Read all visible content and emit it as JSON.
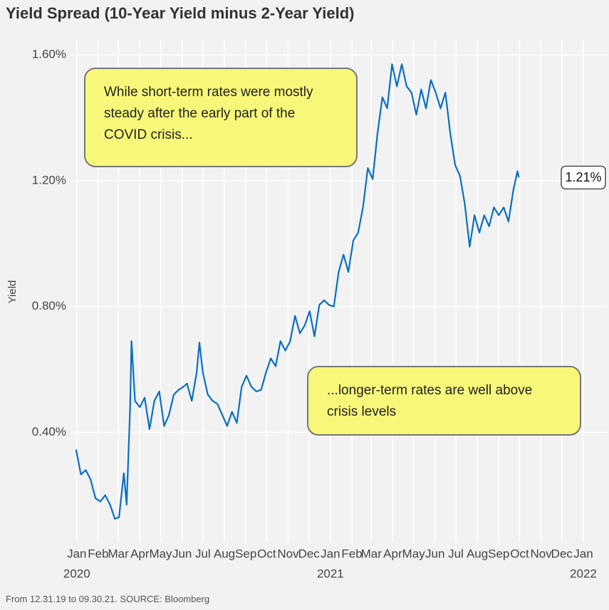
{
  "chart_data": {
    "type": "line",
    "title": "Yield Spread (10-Year Yield minus 2-Year Yield)",
    "y_label": "Yield",
    "footer": "From 12.31.19 to 09.30.21. SOURCE: Bloomberg",
    "color": "#0a6fc2",
    "grid": true,
    "x": [
      "2019-12-31",
      "2020-01-07",
      "2020-01-14",
      "2020-01-21",
      "2020-01-28",
      "2020-02-04",
      "2020-02-11",
      "2020-02-18",
      "2020-02-25",
      "2020-03-02",
      "2020-03-09",
      "2020-03-13",
      "2020-03-18",
      "2020-03-20",
      "2020-03-25",
      "2020-04-01",
      "2020-04-08",
      "2020-04-15",
      "2020-04-22",
      "2020-04-29",
      "2020-05-06",
      "2020-05-13",
      "2020-05-20",
      "2020-05-27",
      "2020-06-03",
      "2020-06-08",
      "2020-06-15",
      "2020-06-22",
      "2020-06-26",
      "2020-07-01",
      "2020-07-08",
      "2020-07-15",
      "2020-07-22",
      "2020-07-29",
      "2020-08-05",
      "2020-08-12",
      "2020-08-19",
      "2020-08-26",
      "2020-09-02",
      "2020-09-09",
      "2020-09-16",
      "2020-09-23",
      "2020-09-30",
      "2020-10-07",
      "2020-10-14",
      "2020-10-21",
      "2020-10-28",
      "2020-11-04",
      "2020-11-11",
      "2020-11-18",
      "2020-11-25",
      "2020-12-02",
      "2020-12-09",
      "2020-12-16",
      "2020-12-23",
      "2020-12-30",
      "2021-01-06",
      "2021-01-13",
      "2021-01-20",
      "2021-01-27",
      "2021-02-03",
      "2021-02-10",
      "2021-02-17",
      "2021-02-24",
      "2021-03-03",
      "2021-03-10",
      "2021-03-17",
      "2021-03-24",
      "2021-03-31",
      "2021-04-07",
      "2021-04-14",
      "2021-04-21",
      "2021-04-28",
      "2021-05-05",
      "2021-05-12",
      "2021-05-19",
      "2021-05-26",
      "2021-06-02",
      "2021-06-09",
      "2021-06-16",
      "2021-06-23",
      "2021-06-30",
      "2021-07-07",
      "2021-07-14",
      "2021-07-21",
      "2021-07-28",
      "2021-08-04",
      "2021-08-11",
      "2021-08-18",
      "2021-08-25",
      "2021-09-01",
      "2021-09-08",
      "2021-09-15",
      "2021-09-22",
      "2021-09-28",
      "2021-09-30"
    ],
    "values": [
      0.345,
      0.266,
      0.28,
      0.25,
      0.19,
      0.18,
      0.2,
      0.17,
      0.125,
      0.13,
      0.27,
      0.17,
      0.48,
      0.69,
      0.5,
      0.48,
      0.51,
      0.41,
      0.5,
      0.53,
      0.42,
      0.455,
      0.52,
      0.535,
      0.545,
      0.555,
      0.5,
      0.59,
      0.685,
      0.59,
      0.52,
      0.5,
      0.49,
      0.455,
      0.42,
      0.465,
      0.43,
      0.545,
      0.58,
      0.545,
      0.53,
      0.535,
      0.59,
      0.635,
      0.61,
      0.69,
      0.66,
      0.69,
      0.77,
      0.715,
      0.74,
      0.785,
      0.705,
      0.805,
      0.82,
      0.805,
      0.8,
      0.91,
      0.965,
      0.91,
      1.01,
      1.035,
      1.115,
      1.24,
      1.205,
      1.35,
      1.465,
      1.43,
      1.57,
      1.5,
      1.57,
      1.5,
      1.48,
      1.41,
      1.49,
      1.43,
      1.52,
      1.48,
      1.43,
      1.48,
      1.35,
      1.25,
      1.215,
      1.125,
      0.99,
      1.09,
      1.035,
      1.09,
      1.055,
      1.115,
      1.09,
      1.115,
      1.07,
      1.17,
      1.23,
      1.21
    ],
    "end_label": {
      "value": 1.21,
      "label": "1.21%"
    },
    "xlim": [
      "2019-12-24",
      "2022-02-05"
    ],
    "xticks": [
      {
        "value": "2020-01",
        "label": "Jan"
      },
      {
        "value": "2020-02",
        "label": "Feb"
      },
      {
        "value": "2020-03",
        "label": "Mar"
      },
      {
        "value": "2020-04",
        "label": "Apr"
      },
      {
        "value": "2020-05",
        "label": "May"
      },
      {
        "value": "2020-06",
        "label": "Jun"
      },
      {
        "value": "2020-07",
        "label": "Jul"
      },
      {
        "value": "2020-08",
        "label": "Aug"
      },
      {
        "value": "2020-09",
        "label": "Sep"
      },
      {
        "value": "2020-10",
        "label": "Oct"
      },
      {
        "value": "2020-11",
        "label": "Nov"
      },
      {
        "value": "2020-12",
        "label": "Dec"
      },
      {
        "value": "2021-01",
        "label": "Jan"
      },
      {
        "value": "2021-02",
        "label": "Feb"
      },
      {
        "value": "2021-03",
        "label": "Mar"
      },
      {
        "value": "2021-04",
        "label": "Apr"
      },
      {
        "value": "2021-05",
        "label": "May"
      },
      {
        "value": "2021-06",
        "label": "Jun"
      },
      {
        "value": "2021-07",
        "label": "Jul"
      },
      {
        "value": "2021-08",
        "label": "Aug"
      },
      {
        "value": "2021-09",
        "label": "Sep"
      },
      {
        "value": "2021-10",
        "label": "Oct"
      },
      {
        "value": "2021-11",
        "label": "Nov"
      },
      {
        "value": "2021-12",
        "label": "Dec"
      },
      {
        "value": "2022-01",
        "label": "Jan"
      }
    ],
    "year_labels": [
      {
        "value": "2020-01",
        "label": "2020"
      },
      {
        "value": "2021-01",
        "label": "2021"
      },
      {
        "value": "2022-01",
        "label": "2022"
      }
    ],
    "ylim": [
      0.05,
      1.65
    ],
    "yticks": [
      {
        "value": 0.4,
        "label": "0.40%"
      },
      {
        "value": 0.8,
        "label": "0.80%"
      },
      {
        "value": 1.2,
        "label": "1.20%"
      },
      {
        "value": 1.6,
        "label": "1.60%"
      }
    ],
    "annotations": [
      {
        "text": "While short-term rates were mostly steady after the early part of the COVID crisis..."
      },
      {
        "text": "...longer-term rates are well above crisis levels"
      }
    ]
  }
}
